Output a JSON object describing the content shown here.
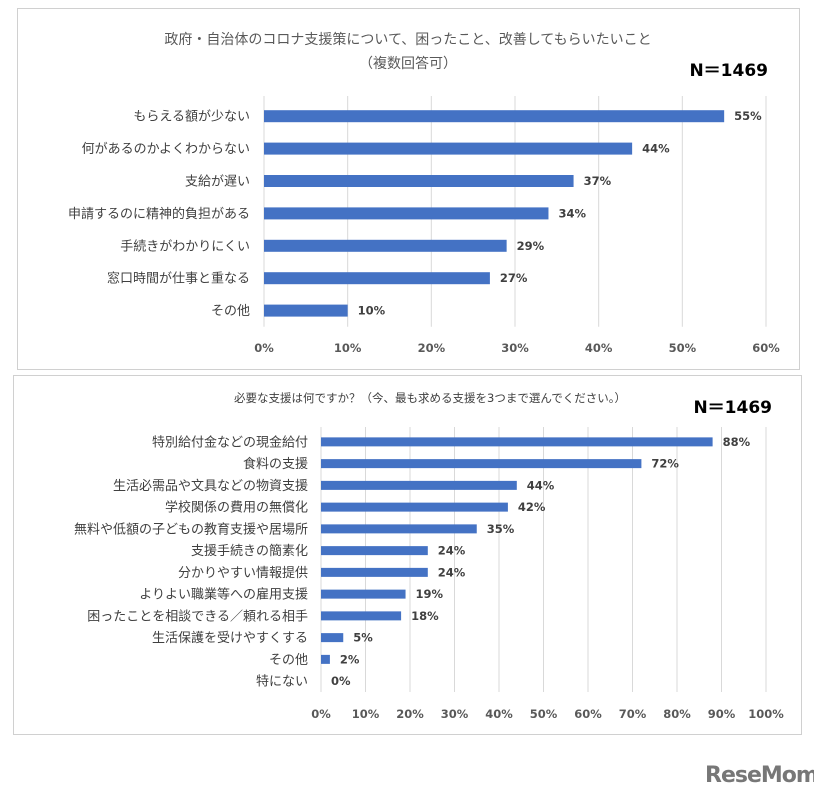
{
  "logo": "ReseMom",
  "charts": [
    {
      "type": "bar",
      "orientation": "horizontal",
      "title": "政府・自治体のコロナ支援策について、困ったこと、改善してもらいたいこと",
      "subtitle": "（複数回答可）",
      "n_label": "N＝1469",
      "categories": [
        "もらえる額が少ない",
        "何があるのかよくわからない",
        "支給が遅い",
        "申請するのに精神的負担がある",
        "手続きがわかりにくい",
        "窓口時間が仕事と重なる",
        "その他"
      ],
      "values": [
        55,
        44,
        37,
        34,
        29,
        27,
        10
      ],
      "value_labels": [
        "55%",
        "44%",
        "37%",
        "34%",
        "29%",
        "27%",
        "10%"
      ],
      "xlim": [
        0,
        60
      ],
      "ticks": [
        "0%",
        "10%",
        "20%",
        "30%",
        "40%",
        "50%",
        "60%"
      ],
      "grid": true,
      "bar_color": "#4472c4"
    },
    {
      "type": "bar",
      "orientation": "horizontal",
      "title": "必要な支援は何ですか？（今、最も求める支援を3つまで選んでください。）",
      "subtitle": "",
      "n_label": "N＝1469",
      "categories": [
        "特別給付金などの現金給付",
        "食料の支援",
        "生活必需品や文具などの物資支援",
        "学校関係の費用の無償化",
        "無料や低額の子どもの教育支援や居場所",
        "支援手続きの簡素化",
        "分かりやすい情報提供",
        "よりよい職業等への雇用支援",
        "困ったことを相談できる／頼れる相手",
        "生活保護を受けやすくする",
        "その他",
        "特にない"
      ],
      "values": [
        88,
        72,
        44,
        42,
        35,
        24,
        24,
        19,
        18,
        5,
        2,
        0
      ],
      "value_labels": [
        "88%",
        "72%",
        "44%",
        "42%",
        "35%",
        "24%",
        "24%",
        "19%",
        "18%",
        "5%",
        "2%",
        "0%"
      ],
      "xlim": [
        0,
        100
      ],
      "ticks": [
        "0%",
        "10%",
        "20%",
        "30%",
        "40%",
        "50%",
        "60%",
        "70%",
        "80%",
        "90%",
        "100%"
      ],
      "grid": true,
      "bar_color": "#4472c4"
    }
  ]
}
